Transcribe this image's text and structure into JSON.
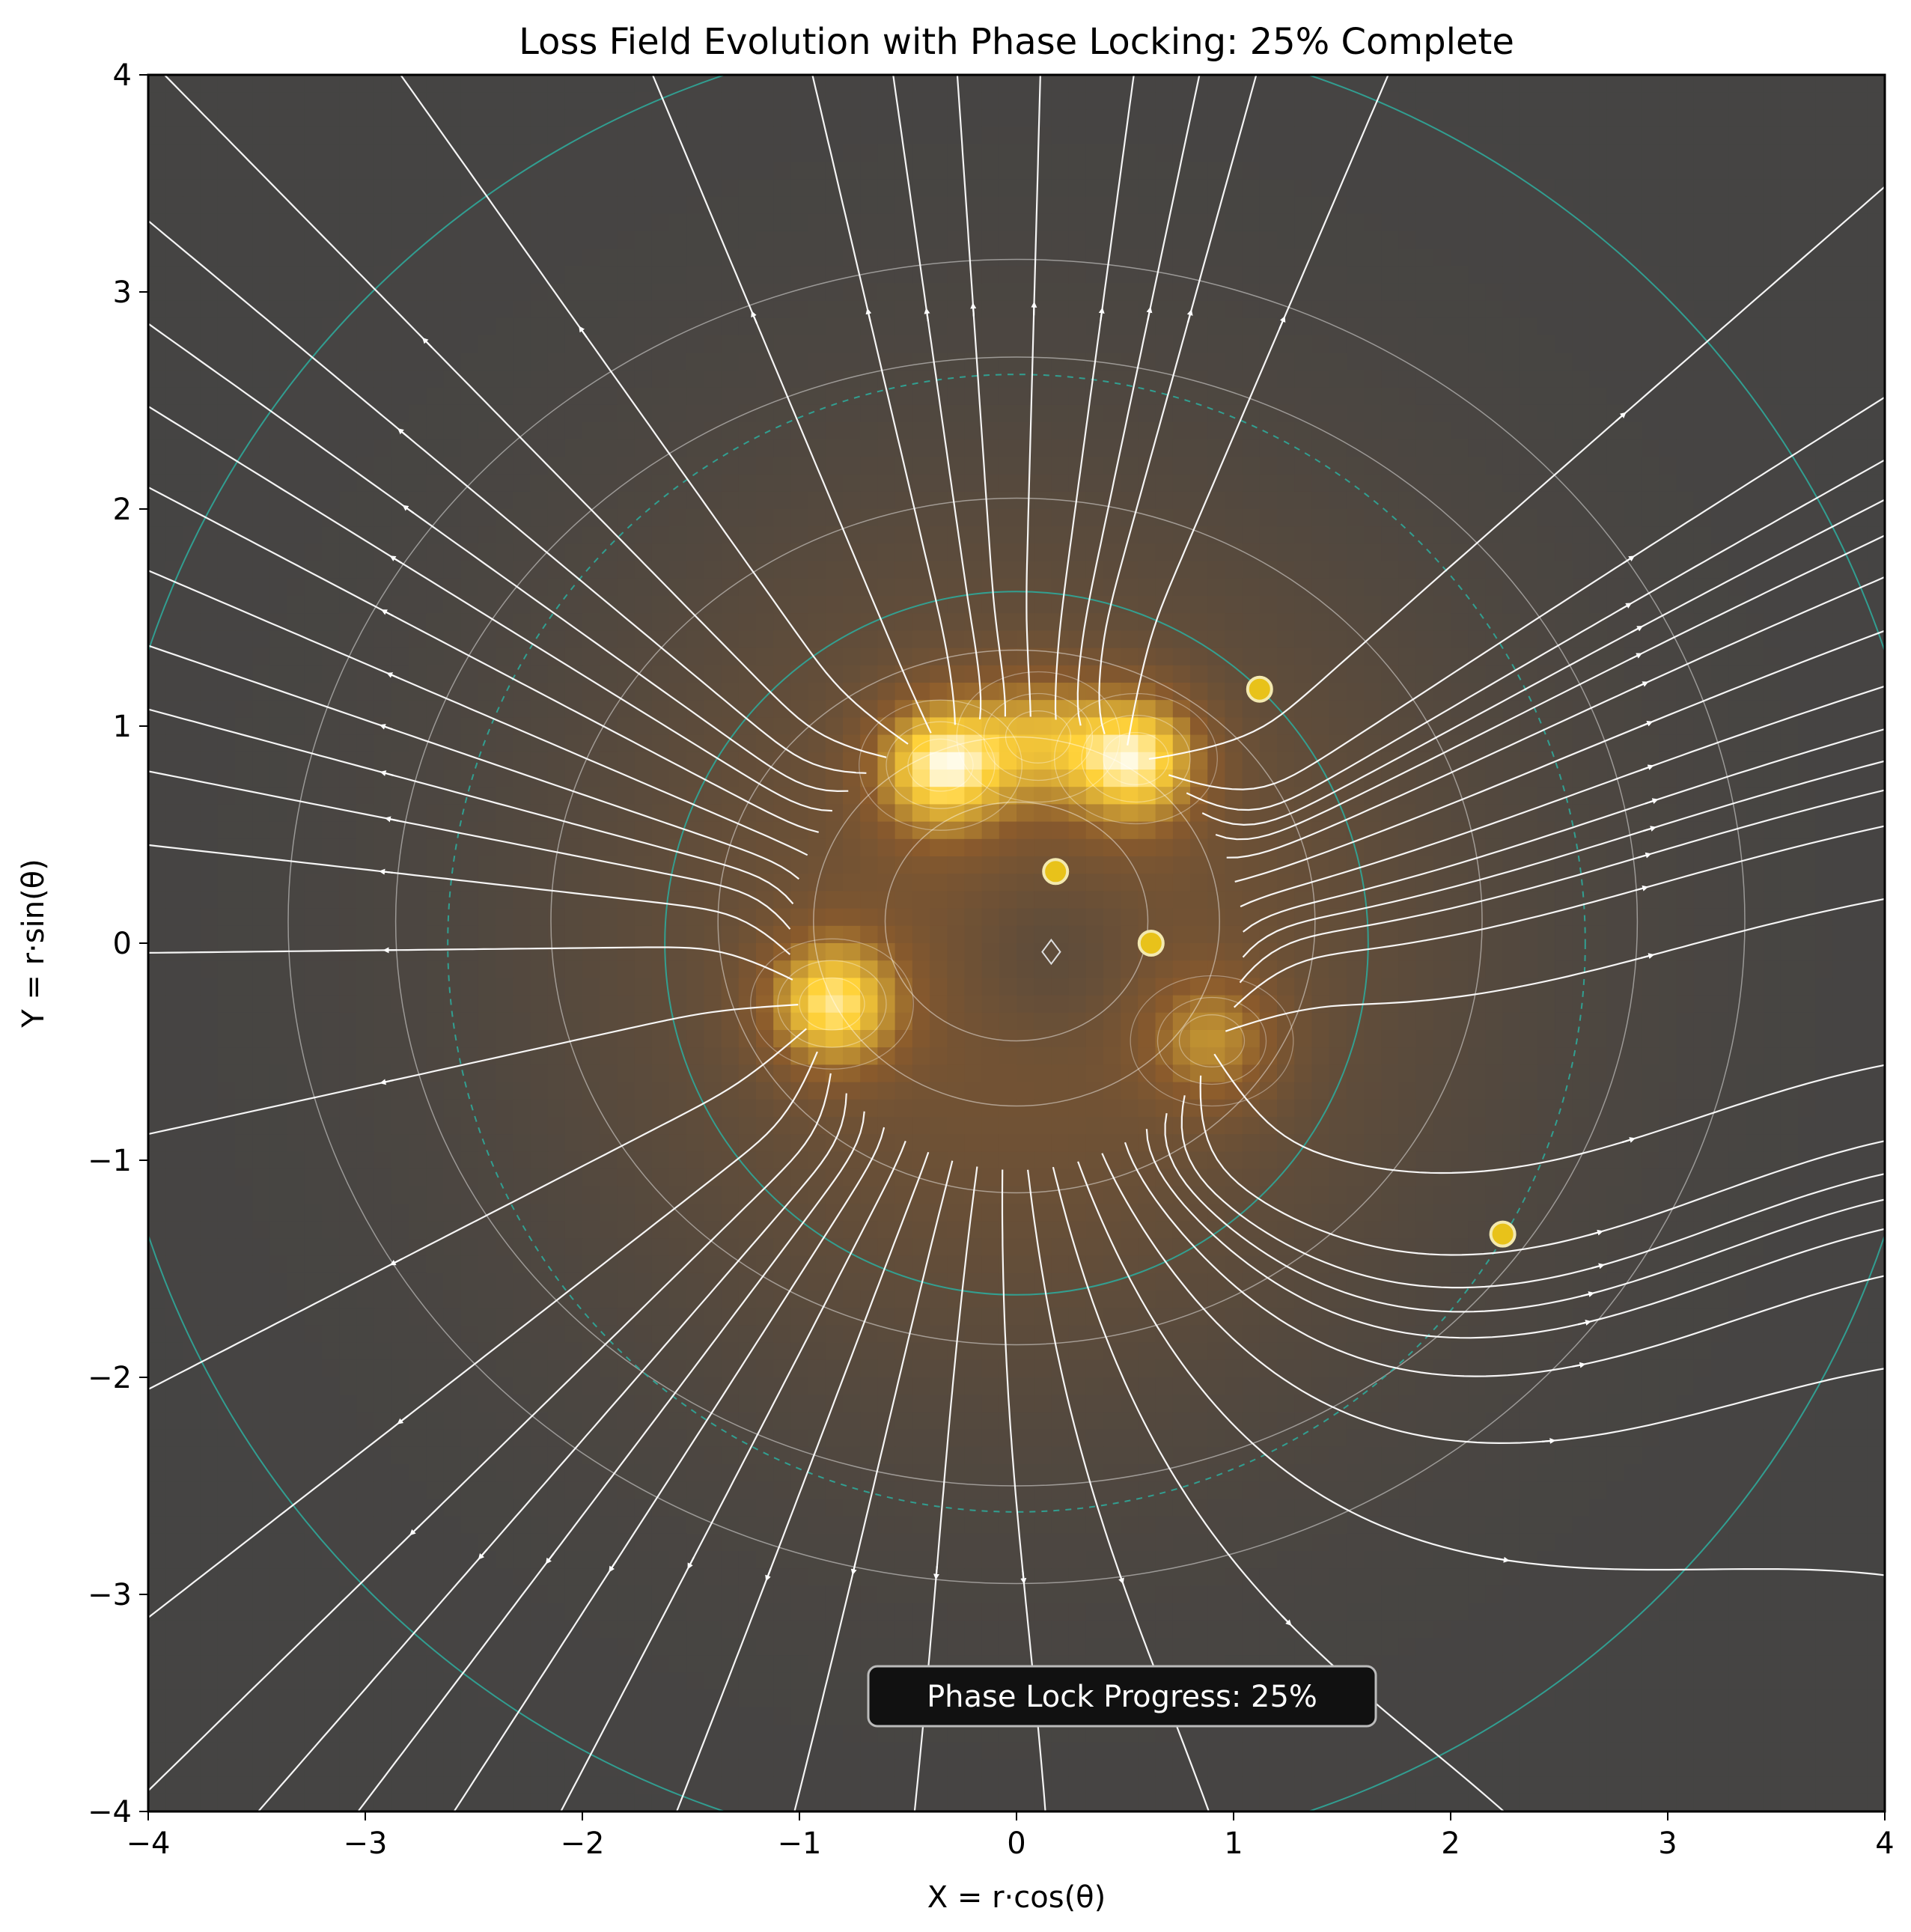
{
  "chart_data": {
    "type": "heatmap",
    "title": "Loss Field Evolution with Phase Locking: 25% Complete",
    "xlabel": "X = r·cos(θ)",
    "ylabel": "Y = r·sin(θ)",
    "xlim": [
      -4,
      4
    ],
    "ylim": [
      -4,
      4
    ],
    "x_ticks": [
      -4,
      -3,
      -2,
      -1,
      0,
      1,
      2,
      3,
      4
    ],
    "y_ticks": [
      -4,
      -3,
      -2,
      -1,
      0,
      1,
      2,
      3,
      4
    ],
    "x_tick_labels": [
      "−4",
      "−3",
      "−2",
      "−1",
      "0",
      "1",
      "2",
      "3",
      "4"
    ],
    "y_tick_labels": [
      "−4",
      "−3",
      "−2",
      "−1",
      "0",
      "1",
      "2",
      "3",
      "4"
    ],
    "grid": false,
    "colormap": {
      "low": "#454443",
      "mid": "#8a5a2c",
      "high": "#ffd23a",
      "peak": "#fffbe8"
    },
    "loss_peaks": [
      {
        "x": -0.35,
        "y": 0.82,
        "amplitude": 1.0
      },
      {
        "x": 0.55,
        "y": 0.85,
        "amplitude": 1.0
      },
      {
        "x": -0.85,
        "y": -0.28,
        "amplitude": 0.95
      },
      {
        "x": 0.9,
        "y": -0.45,
        "amplitude": 0.55
      },
      {
        "x": 0.1,
        "y": 0.95,
        "amplitude": 0.55
      }
    ],
    "reference_circles": [
      {
        "center": [
          0,
          0
        ],
        "radius": 1.62,
        "style": "solid",
        "color": "#2fa89a"
      },
      {
        "center": [
          0,
          0
        ],
        "radius": 2.62,
        "style": "dashed",
        "color": "#2fa89a"
      },
      {
        "center": [
          0,
          0
        ],
        "radius": 4.22,
        "style": "solid",
        "color": "#2fa89a"
      }
    ],
    "particles": [
      {
        "x": 1.12,
        "y": 1.17
      },
      {
        "x": 0.18,
        "y": 0.33
      },
      {
        "x": 0.62,
        "y": 0.0
      },
      {
        "x": 2.24,
        "y": -1.34
      }
    ],
    "particle_color": "#e8c21a",
    "center_marker": {
      "x": 0.16,
      "y": -0.04,
      "shape": "diamond"
    },
    "streamline_color": "#ffffff",
    "annotation": "Phase Lock Progress: 25%"
  }
}
